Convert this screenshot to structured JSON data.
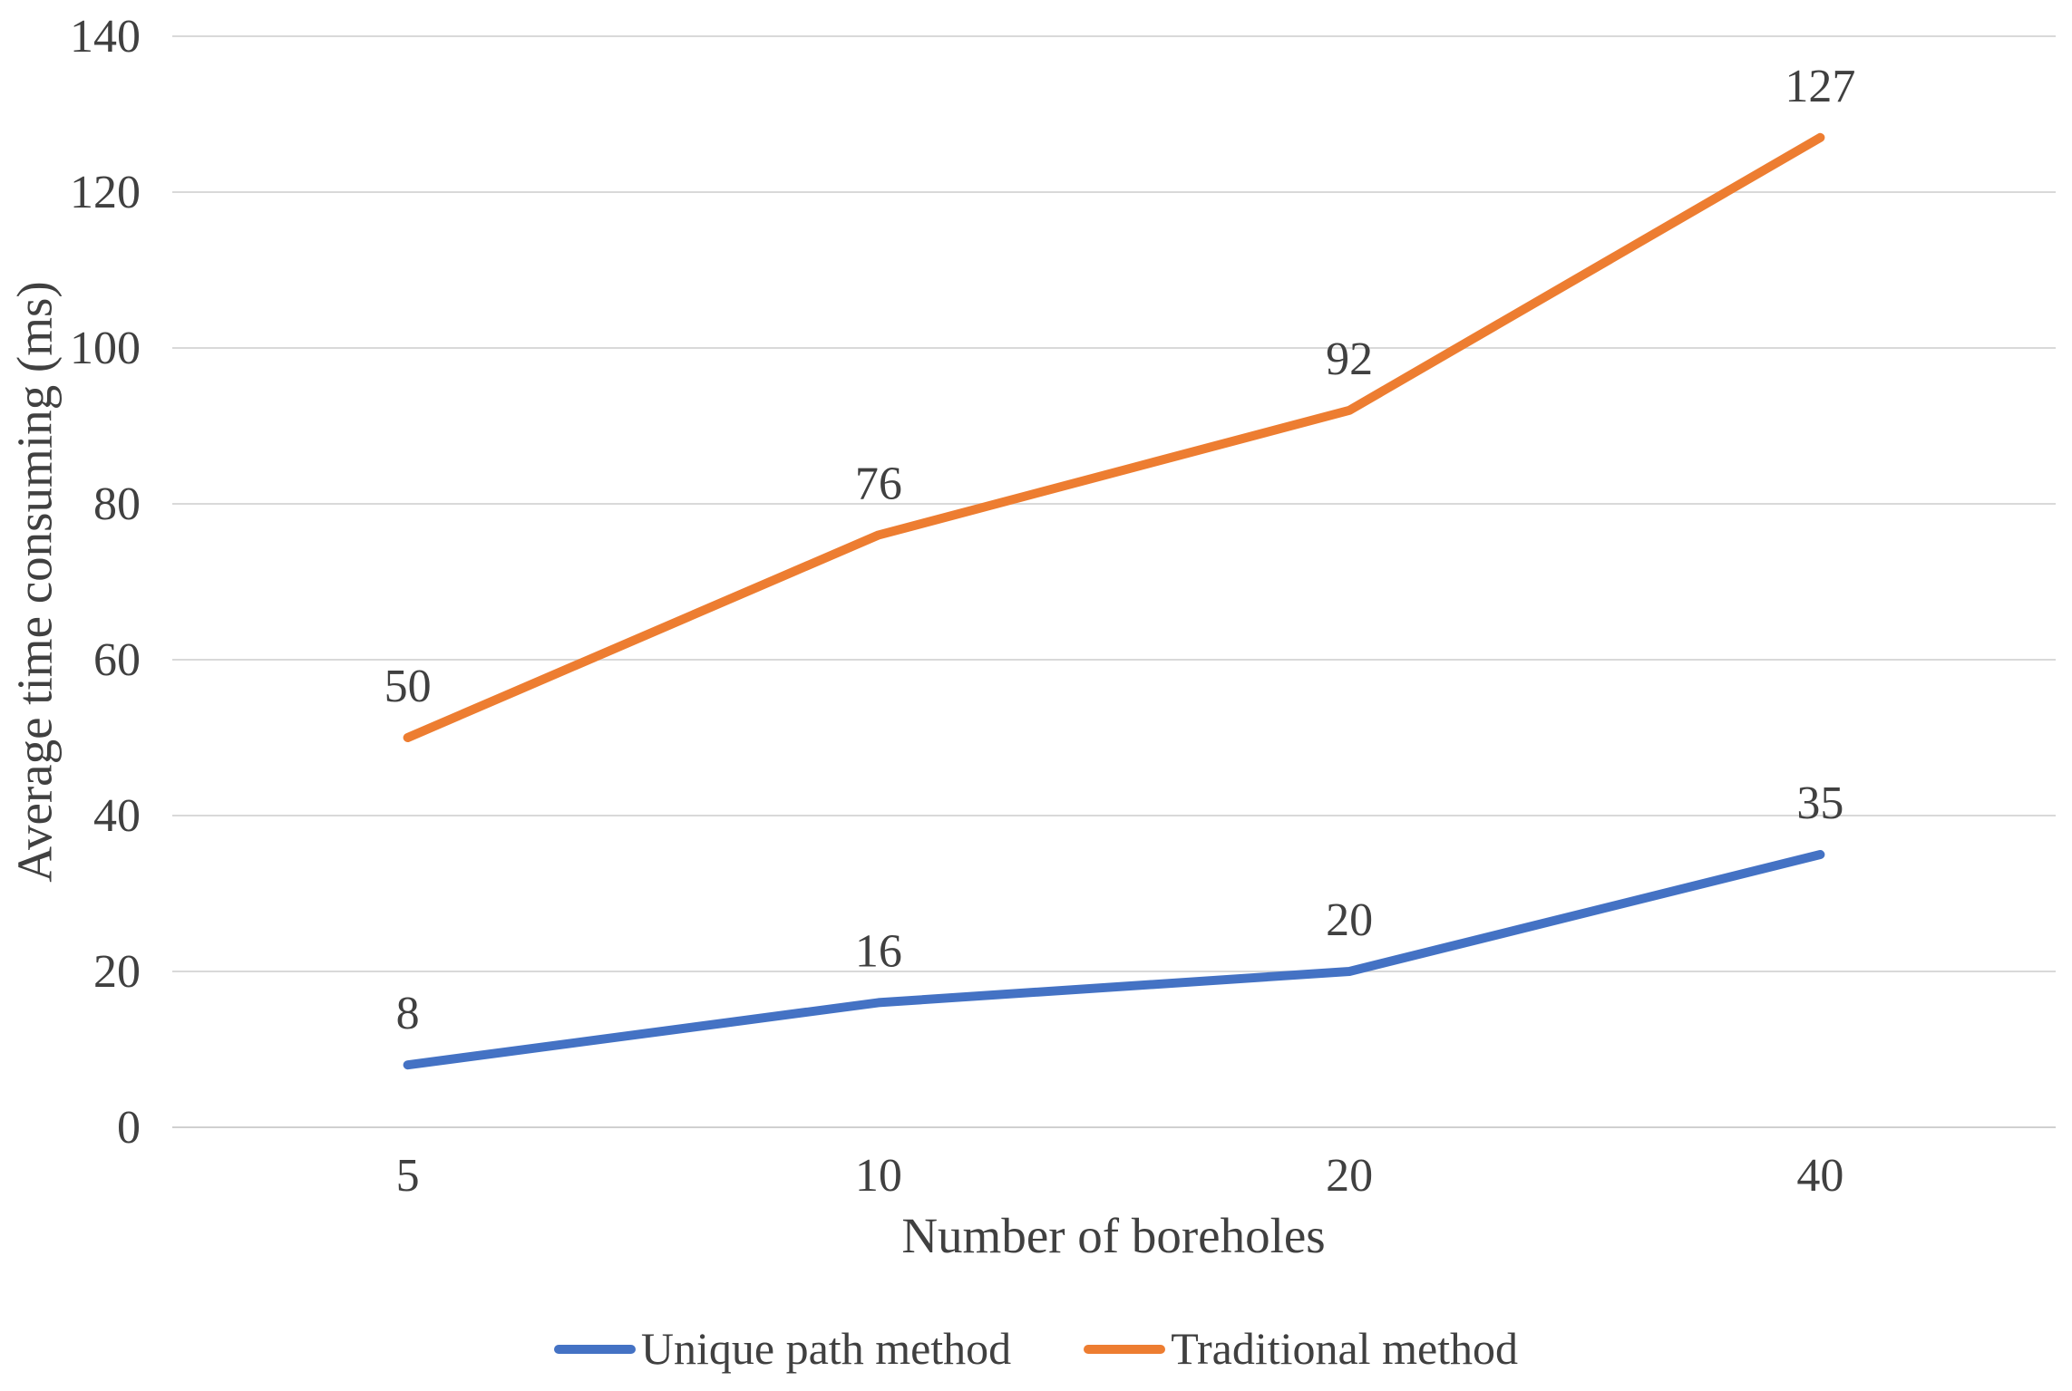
{
  "chart_data": {
    "type": "line",
    "title": "",
    "xlabel": "Number of boreholes",
    "ylabel": "Average time consuming (ms)",
    "categories": [
      5,
      10,
      20,
      40
    ],
    "series": [
      {
        "name": "Unique path method",
        "values": [
          8,
          16,
          20,
          35
        ],
        "color": "#4472C4"
      },
      {
        "name": "Traditional method",
        "values": [
          50,
          76,
          92,
          127
        ],
        "color": "#ED7D31"
      }
    ],
    "ylim": [
      0,
      140
    ],
    "yticks": [
      0,
      20,
      40,
      60,
      80,
      100,
      120,
      140
    ],
    "grid": true,
    "gridline_color": "#D9D9D9",
    "text_color": "#404040",
    "data_labels": true,
    "legend_position": "bottom"
  }
}
